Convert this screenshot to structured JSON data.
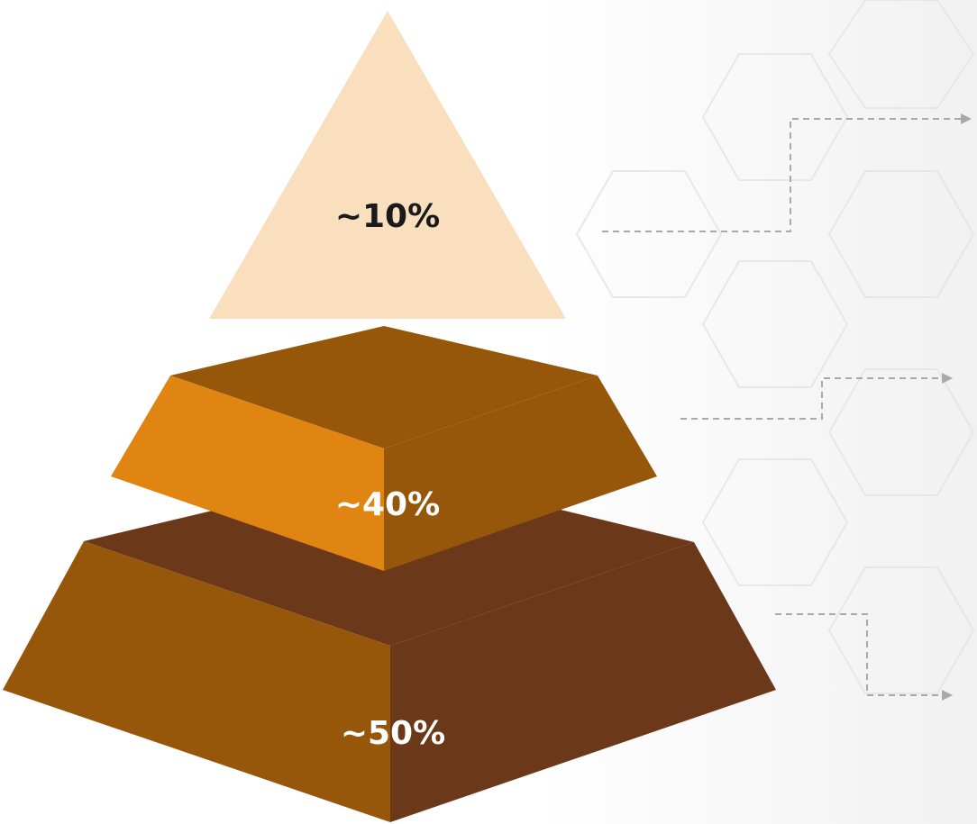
{
  "tiers": [
    {
      "id": "top",
      "label": "~10%",
      "label_color": "#1a1a1a",
      "face_color": "#f9dfbd"
    },
    {
      "id": "middle",
      "label": "~40%",
      "label_color": "#ffffff",
      "left_face_color": "#e08412",
      "right_face_color": "#96570b",
      "top_face_color": "#96570b"
    },
    {
      "id": "bottom",
      "label": "~50%",
      "label_color": "#ffffff",
      "left_face_color": "#96570b",
      "right_face_color": "#6b3819",
      "top_face_color": "#6b3819"
    }
  ],
  "connectors": {
    "color": "#a9a9a9",
    "style": "dashed",
    "arrow": "right"
  }
}
